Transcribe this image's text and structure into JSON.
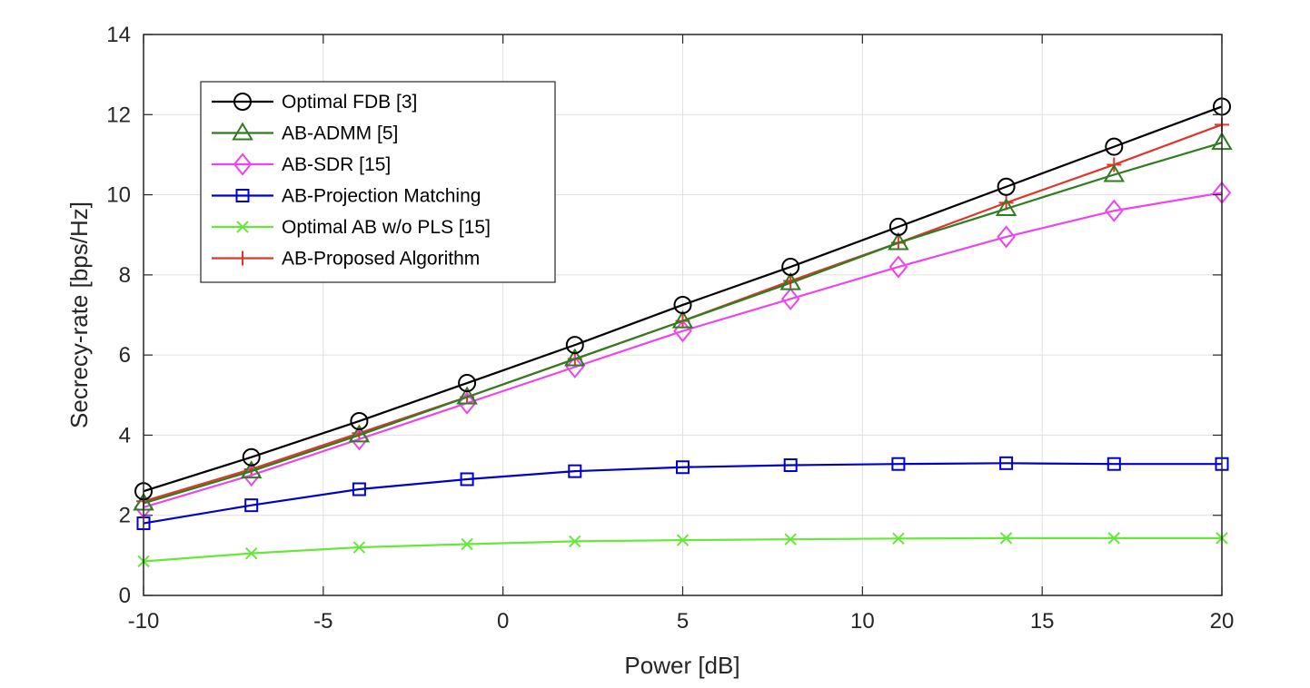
{
  "chart_data": {
    "type": "line",
    "title": "",
    "xlabel": "Power [dB]",
    "ylabel": "Secrecy-rate [bps/Hz]",
    "xlim": [
      -10,
      20
    ],
    "ylim": [
      0,
      14
    ],
    "xticks": [
      -10,
      -5,
      0,
      5,
      10,
      15,
      20
    ],
    "yticks": [
      0,
      2,
      4,
      6,
      8,
      10,
      12,
      14
    ],
    "grid": true,
    "legend_position": "top-left",
    "x": [
      -10,
      -7,
      -4,
      -1,
      2,
      5,
      8,
      11,
      14,
      17,
      20
    ],
    "series": [
      {
        "name": "Optimal FDB [3]",
        "color": "#000000",
        "marker": "circle",
        "values": [
          2.6,
          3.45,
          4.35,
          5.3,
          6.25,
          7.25,
          8.2,
          9.2,
          10.2,
          11.2,
          12.2
        ]
      },
      {
        "name": "AB-ADMM [5]",
        "color": "#2e7d1f",
        "marker": "triangle",
        "values": [
          2.3,
          3.1,
          4.0,
          4.95,
          5.9,
          6.85,
          7.8,
          8.8,
          9.65,
          10.5,
          11.3
        ]
      },
      {
        "name": "AB-SDR [15]",
        "color": "#ee44ee",
        "marker": "diamond",
        "values": [
          2.2,
          3.0,
          3.9,
          4.8,
          5.7,
          6.6,
          7.4,
          8.2,
          8.95,
          9.6,
          10.05
        ]
      },
      {
        "name": "AB-Projection Matching",
        "color": "#0000cc",
        "marker": "square",
        "values": [
          1.8,
          2.25,
          2.65,
          2.9,
          3.1,
          3.2,
          3.25,
          3.28,
          3.3,
          3.28,
          3.28
        ]
      },
      {
        "name": "Optimal AB w/o PLS [15]",
        "color": "#66e83a",
        "marker": "x",
        "values": [
          0.85,
          1.05,
          1.2,
          1.28,
          1.35,
          1.38,
          1.4,
          1.42,
          1.43,
          1.43,
          1.43
        ]
      },
      {
        "name": "AB-Proposed Algorithm",
        "color": "#e0362a",
        "marker": "plus",
        "values": [
          2.35,
          3.15,
          4.05,
          4.95,
          5.9,
          6.85,
          7.85,
          8.8,
          9.8,
          10.75,
          11.75
        ]
      }
    ]
  }
}
